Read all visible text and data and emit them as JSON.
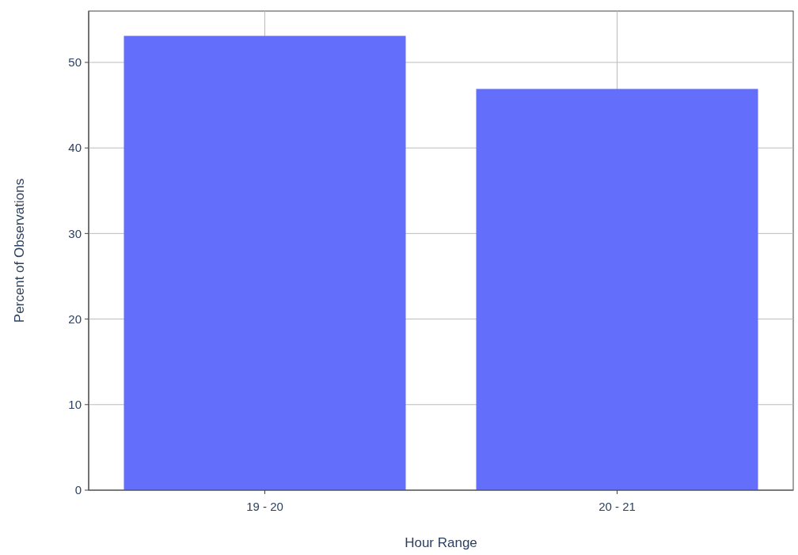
{
  "chart_data": {
    "type": "bar",
    "xlabel": "Hour Range",
    "ylabel": "Percent of Observations",
    "categories": [
      "19 - 20",
      "20 - 21"
    ],
    "values": [
      53.1,
      46.9
    ],
    "color": "#636efa",
    "ylim": [
      0,
      56
    ],
    "yticks": [
      0,
      10,
      20,
      30,
      40,
      50
    ],
    "grid": true
  }
}
